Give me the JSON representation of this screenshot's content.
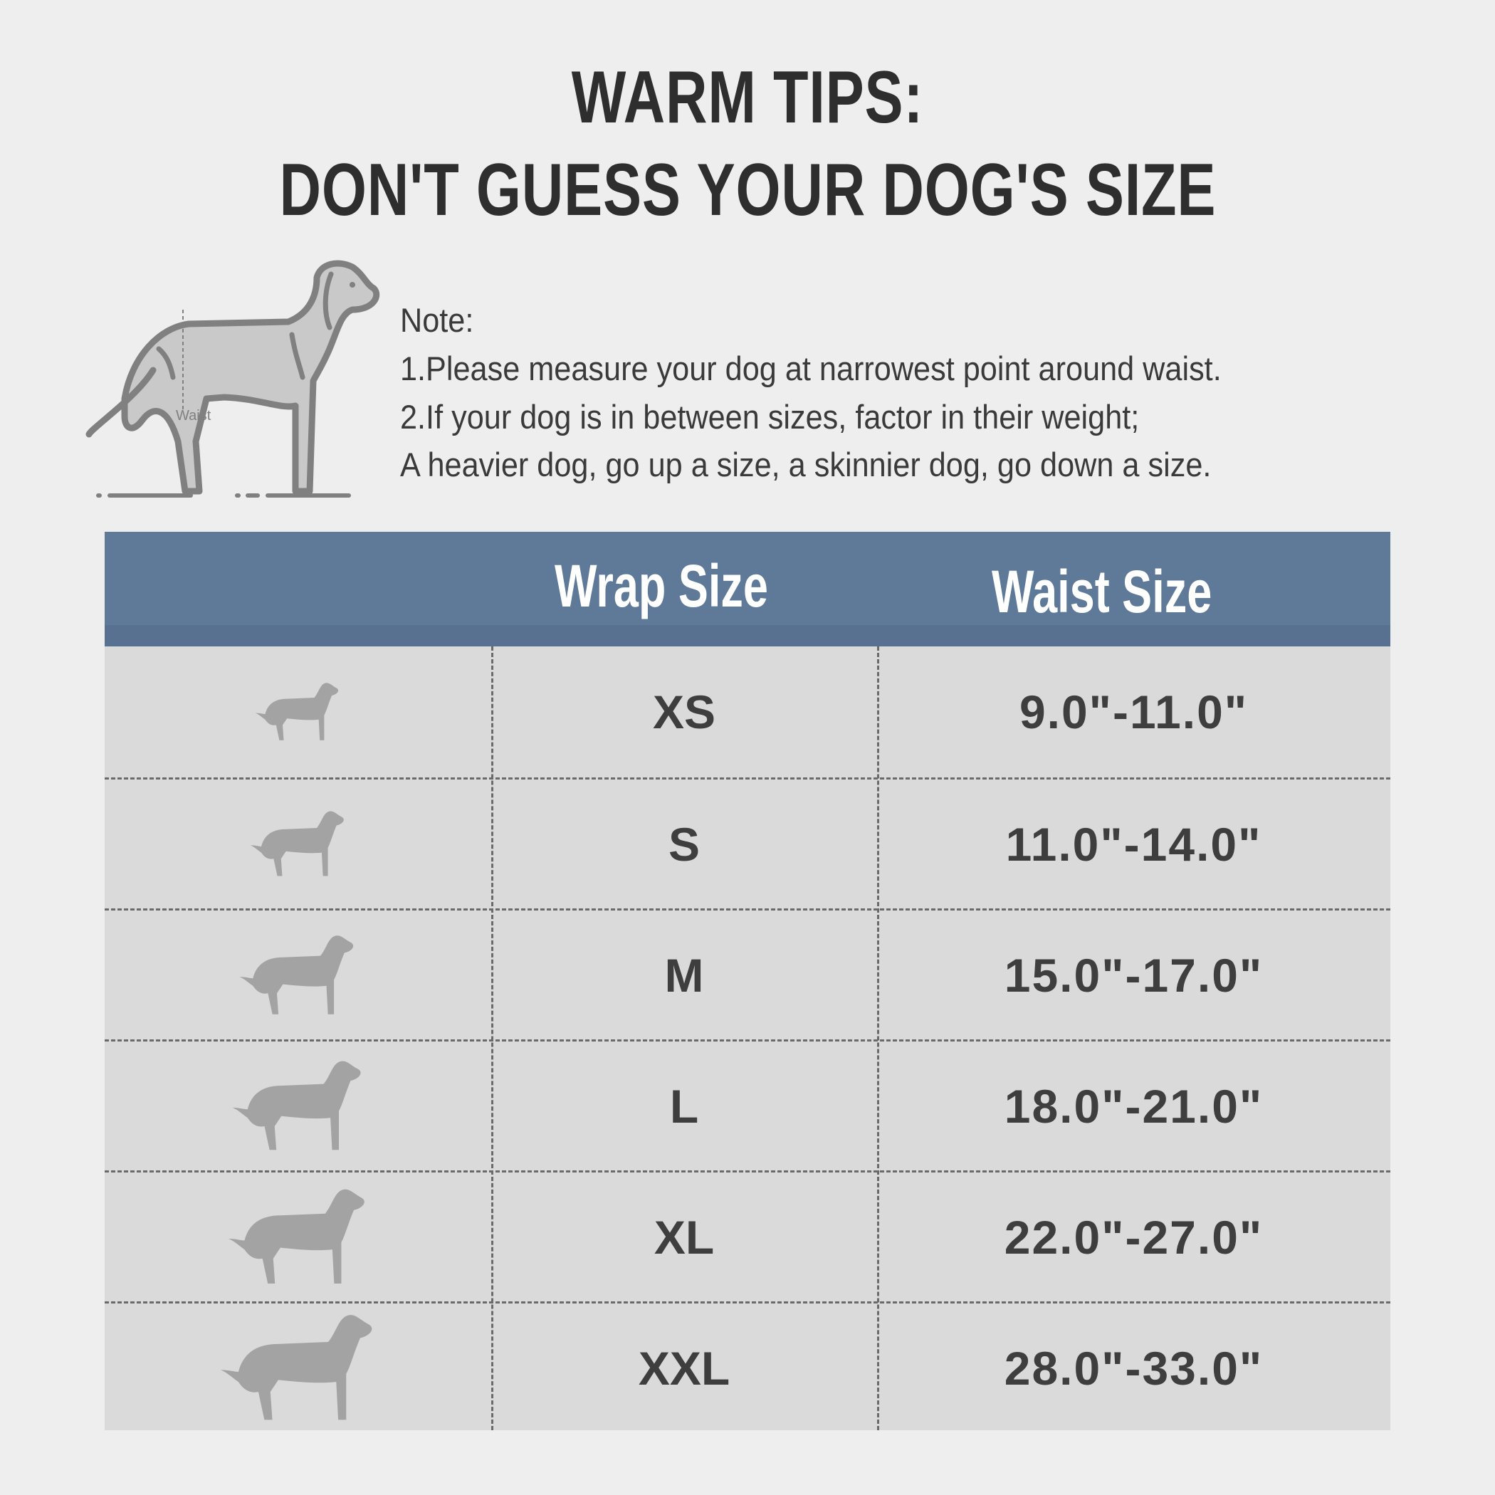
{
  "title": {
    "line1": "WARM TIPS:",
    "line2": "DON'T GUESS YOUR DOG'S SIZE"
  },
  "illustration": {
    "waist_label": "Waist",
    "icon": "dog-measure-waist-icon"
  },
  "note": {
    "heading": "Note:",
    "lines": [
      "1.Please measure your dog at narrowest point around waist.",
      "2.If your dog is in between sizes, factor in their weight;",
      "A heavier dog, go up a size, a skinnier dog, go down a  size."
    ]
  },
  "table": {
    "header_color": "#5f7a98",
    "columns": [
      "",
      "Wrap Size",
      "Waist Size"
    ],
    "rows": [
      {
        "size": "XS",
        "waist": "9.0\"-11.0\"",
        "icon": "chihuahua-silhouette-icon"
      },
      {
        "size": "S",
        "waist": "11.0\"-14.0\"",
        "icon": "small-dog-silhouette-icon"
      },
      {
        "size": "M",
        "waist": "15.0\"-17.0\"",
        "icon": "medium-dog-silhouette-icon"
      },
      {
        "size": "L",
        "waist": "18.0\"-21.0\"",
        "icon": "large-dog-silhouette-icon"
      },
      {
        "size": "XL",
        "waist": "22.0\"-27.0\"",
        "icon": "xl-dog-silhouette-icon"
      },
      {
        "size": "XXL",
        "waist": "28.0\"-33.0\"",
        "icon": "xxl-dog-silhouette-icon"
      }
    ]
  }
}
